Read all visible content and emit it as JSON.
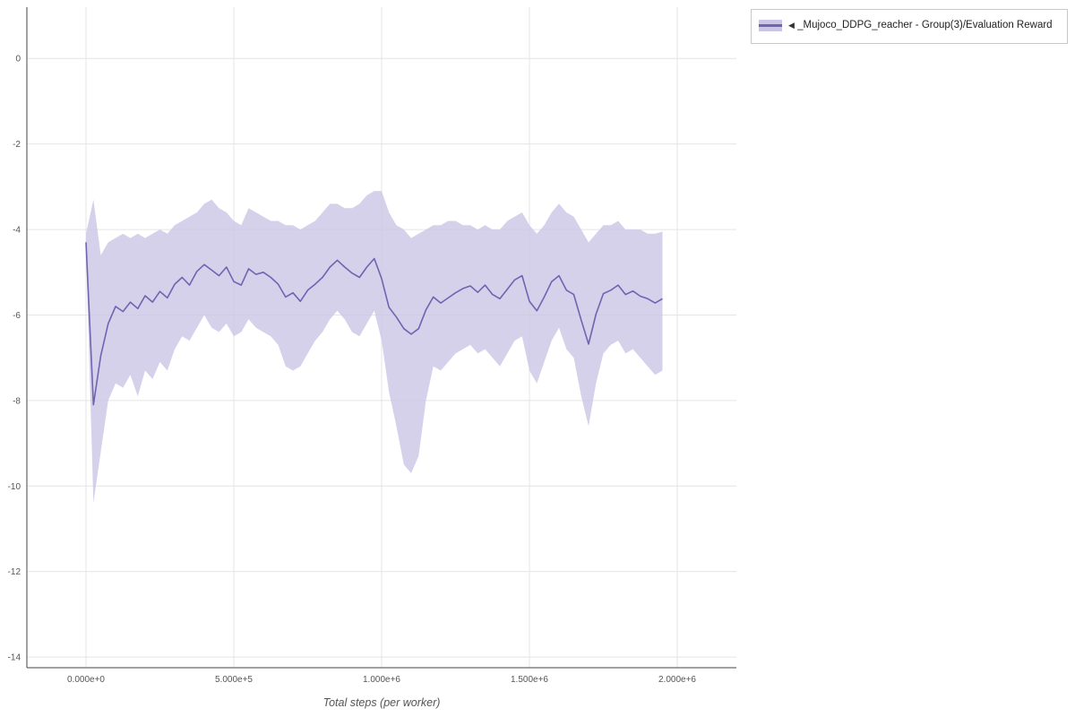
{
  "legend": {
    "collapse_marker": "◀",
    "label": "_Mujoco_DDPG_reacher - Group(3)/Evaluation Reward"
  },
  "colors": {
    "grid": "#e4e4e4",
    "axis": "#444444",
    "tick_text": "#555555",
    "line": "#6f64b0",
    "band": "#ccc6e6"
  },
  "chart_data": {
    "type": "line",
    "title": "",
    "xlabel": "Total steps (per worker)",
    "ylabel": "",
    "xlim": [
      -200000,
      2200000
    ],
    "ylim": [
      -14.25,
      1.2
    ],
    "grid": true,
    "legend_position": "top-right-outside",
    "x_ticks": [
      {
        "v": 0,
        "label": "0.000e+0"
      },
      {
        "v": 500000,
        "label": "5.000e+5"
      },
      {
        "v": 1000000,
        "label": "1.000e+6"
      },
      {
        "v": 1500000,
        "label": "1.500e+6"
      },
      {
        "v": 2000000,
        "label": "2.000e+6"
      }
    ],
    "y_ticks": [
      {
        "v": 0,
        "label": "0"
      },
      {
        "v": -2,
        "label": "-2"
      },
      {
        "v": -4,
        "label": "-4"
      },
      {
        "v": -6,
        "label": "-6"
      },
      {
        "v": -8,
        "label": "-8"
      },
      {
        "v": -10,
        "label": "-10"
      },
      {
        "v": -12,
        "label": "-12"
      },
      {
        "v": -14,
        "label": "-14"
      }
    ],
    "series": [
      {
        "name": "_Mujoco_DDPG_reacher - Group(3)/Evaluation Reward",
        "line_color": "#6f64b0",
        "band_color": "#ccc6e6",
        "band_opacity": 0.8,
        "x": [
          0,
          25000,
          50000,
          75000,
          100000,
          125000,
          150000,
          175000,
          200000,
          225000,
          250000,
          275000,
          300000,
          325000,
          350000,
          375000,
          400000,
          425000,
          450000,
          475000,
          500000,
          525000,
          550000,
          575000,
          600000,
          625000,
          650000,
          675000,
          700000,
          725000,
          750000,
          775000,
          800000,
          825000,
          850000,
          875000,
          900000,
          925000,
          950000,
          975000,
          1000000,
          1025000,
          1050000,
          1075000,
          1100000,
          1125000,
          1150000,
          1175000,
          1200000,
          1225000,
          1250000,
          1275000,
          1300000,
          1325000,
          1350000,
          1375000,
          1400000,
          1425000,
          1450000,
          1475000,
          1500000,
          1525000,
          1550000,
          1575000,
          1600000,
          1625000,
          1650000,
          1675000,
          1700000,
          1725000,
          1750000,
          1775000,
          1800000,
          1825000,
          1850000,
          1875000,
          1900000,
          1925000,
          1950000
        ],
        "mean": [
          -4.3,
          -8.1,
          -6.95,
          -6.2,
          -5.8,
          -5.92,
          -5.7,
          -5.85,
          -5.55,
          -5.7,
          -5.45,
          -5.6,
          -5.28,
          -5.12,
          -5.3,
          -4.98,
          -4.82,
          -4.95,
          -5.08,
          -4.88,
          -5.22,
          -5.3,
          -4.92,
          -5.05,
          -5.0,
          -5.12,
          -5.28,
          -5.58,
          -5.48,
          -5.68,
          -5.42,
          -5.28,
          -5.12,
          -4.88,
          -4.72,
          -4.88,
          -5.02,
          -5.12,
          -4.88,
          -4.68,
          -5.15,
          -5.82,
          -6.05,
          -6.32,
          -6.45,
          -6.32,
          -5.88,
          -5.58,
          -5.72,
          -5.6,
          -5.48,
          -5.38,
          -5.32,
          -5.47,
          -5.3,
          -5.52,
          -5.62,
          -5.4,
          -5.18,
          -5.08,
          -5.68,
          -5.9,
          -5.58,
          -5.22,
          -5.08,
          -5.42,
          -5.52,
          -6.12,
          -6.68,
          -5.98,
          -5.5,
          -5.42,
          -5.3,
          -5.52,
          -5.44,
          -5.56,
          -5.62,
          -5.72,
          -5.62
        ],
        "lo": [
          -4.5,
          -10.4,
          -9.2,
          -8.0,
          -7.6,
          -7.7,
          -7.4,
          -7.9,
          -7.3,
          -7.5,
          -7.1,
          -7.3,
          -6.8,
          -6.5,
          -6.6,
          -6.3,
          -6.0,
          -6.3,
          -6.4,
          -6.2,
          -6.5,
          -6.4,
          -6.1,
          -6.3,
          -6.4,
          -6.5,
          -6.7,
          -7.2,
          -7.3,
          -7.2,
          -6.9,
          -6.6,
          -6.4,
          -6.1,
          -5.9,
          -6.1,
          -6.4,
          -6.5,
          -6.2,
          -5.9,
          -6.6,
          -7.8,
          -8.6,
          -9.5,
          -9.7,
          -9.3,
          -8.0,
          -7.2,
          -7.3,
          -7.1,
          -6.9,
          -6.8,
          -6.7,
          -6.9,
          -6.8,
          -7.0,
          -7.2,
          -6.9,
          -6.6,
          -6.5,
          -7.3,
          -7.6,
          -7.1,
          -6.6,
          -6.3,
          -6.8,
          -7.0,
          -7.9,
          -8.6,
          -7.6,
          -6.9,
          -6.7,
          -6.6,
          -6.9,
          -6.8,
          -7.0,
          -7.2,
          -7.4,
          -7.3
        ],
        "hi": [
          -4.1,
          -3.3,
          -4.6,
          -4.3,
          -4.2,
          -4.1,
          -4.2,
          -4.1,
          -4.2,
          -4.1,
          -4.0,
          -4.1,
          -3.9,
          -3.8,
          -3.7,
          -3.6,
          -3.4,
          -3.3,
          -3.5,
          -3.6,
          -3.8,
          -3.9,
          -3.5,
          -3.6,
          -3.7,
          -3.8,
          -3.8,
          -3.9,
          -3.9,
          -4.0,
          -3.9,
          -3.8,
          -3.6,
          -3.4,
          -3.4,
          -3.5,
          -3.5,
          -3.4,
          -3.2,
          -3.1,
          -3.1,
          -3.6,
          -3.9,
          -4.0,
          -4.2,
          -4.1,
          -4.0,
          -3.9,
          -3.9,
          -3.8,
          -3.8,
          -3.9,
          -3.9,
          -4.0,
          -3.9,
          -4.0,
          -4.0,
          -3.8,
          -3.7,
          -3.6,
          -3.9,
          -4.1,
          -3.9,
          -3.6,
          -3.4,
          -3.6,
          -3.7,
          -4.0,
          -4.3,
          -4.1,
          -3.9,
          -3.9,
          -3.8,
          -4.0,
          -4.0,
          -4.0,
          -4.1,
          -4.1,
          -4.05
        ]
      }
    ]
  }
}
